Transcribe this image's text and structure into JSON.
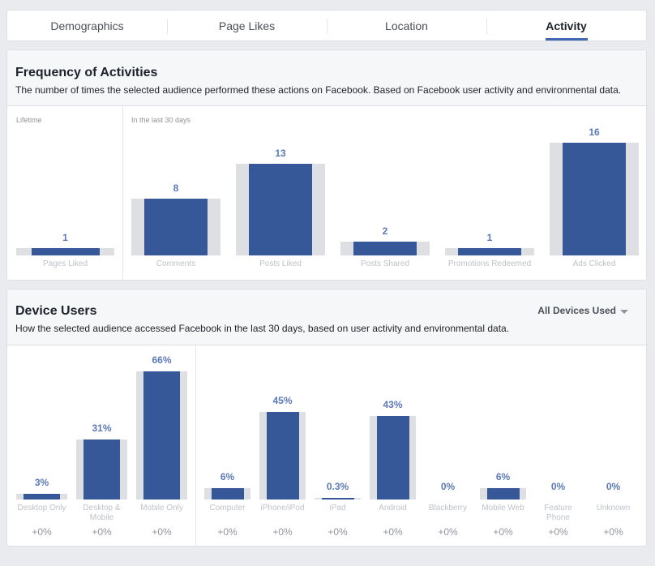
{
  "tabs": [
    {
      "label": "Demographics",
      "active": false
    },
    {
      "label": "Page Likes",
      "active": false
    },
    {
      "label": "Location",
      "active": false
    },
    {
      "label": "Activity",
      "active": true
    }
  ],
  "frequency": {
    "title": "Frequency of Activities",
    "subtitle": "The number of times the selected audience performed these actions on Facebook. Based on Facebook user activity and environmental data.",
    "lifetime_label": "Lifetime",
    "last30_label": "In the last 30 days"
  },
  "devices": {
    "title": "Device Users",
    "subtitle": "How the selected audience accessed Facebook in the last 30 days, based on user activity and environmental data.",
    "dropdown_label": "All Devices Used"
  },
  "colors": {
    "bar": "#365899",
    "bar_bg": "#dddfe2",
    "value_text": "#5b79b7",
    "tab_underline": "#4267b2"
  },
  "chart_data": [
    {
      "type": "bar",
      "title": "Frequency of Activities",
      "groups": [
        {
          "label": "Lifetime",
          "categories": [
            "Pages Liked"
          ],
          "values": [
            1
          ],
          "value_labels": [
            "1"
          ]
        },
        {
          "label": "In the last 30 days",
          "categories": [
            "Comments",
            "Posts Liked",
            "Posts Shared",
            "Promotions Redeemed",
            "Ads Clicked"
          ],
          "values": [
            8,
            13,
            2,
            1,
            16
          ],
          "value_labels": [
            "8",
            "13",
            "2",
            "1",
            "16"
          ]
        }
      ]
    },
    {
      "type": "bar",
      "title": "Device Users",
      "unit": "%",
      "groups": [
        {
          "categories": [
            "Desktop Only",
            "Desktop & Mobile",
            "Mobile Only"
          ],
          "values": [
            3,
            31,
            66
          ],
          "value_labels": [
            "3%",
            "31%",
            "66%"
          ],
          "changes": [
            "+0%",
            "+0%",
            "+0%"
          ]
        },
        {
          "categories": [
            "Computer",
            "iPhone/iPod",
            "iPad",
            "Android",
            "Blackberry",
            "Mobile Web",
            "Feature Phone",
            "Unknown"
          ],
          "values": [
            6,
            45,
            0.3,
            43,
            0,
            6,
            0,
            0
          ],
          "value_labels": [
            "6%",
            "45%",
            "0.3%",
            "43%",
            "0%",
            "6%",
            "0%",
            "0%"
          ],
          "changes": [
            "+0%",
            "+0%",
            "+0%",
            "+0%",
            "+0%",
            "+0%",
            "+0%",
            "+0%"
          ]
        }
      ]
    }
  ]
}
